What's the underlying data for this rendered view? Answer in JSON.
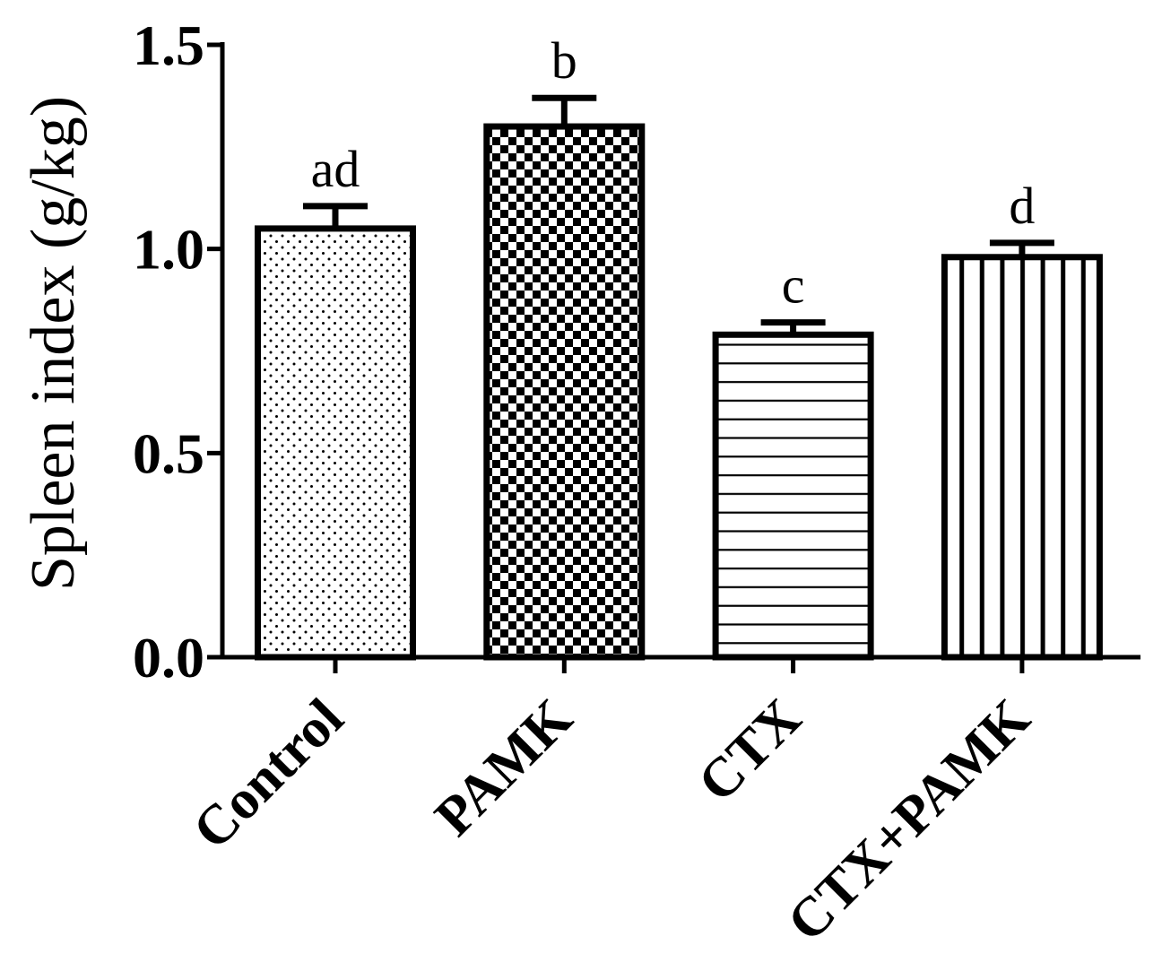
{
  "chart_data": {
    "type": "bar",
    "categories": [
      "Control",
      "PAMK",
      "CTX",
      "CTX+PAMK"
    ],
    "values": [
      1.05,
      1.3,
      0.79,
      0.98
    ],
    "error_bars": [
      0.055,
      0.07,
      0.03,
      0.035
    ],
    "annotations": [
      "ad",
      "b",
      "c",
      "d"
    ],
    "bar_patterns": [
      "dots",
      "checkerboard",
      "horizontal-lines",
      "vertical-lines"
    ],
    "ylabel": "Spleen index (g/kg)",
    "ylim": [
      0,
      1.5
    ],
    "yticks": [
      0.0,
      0.5,
      1.0,
      1.5
    ],
    "ytick_labels": [
      "0.0",
      "0.5",
      "1.0",
      "1.5"
    ],
    "grid": false,
    "legend": "none",
    "colors": {
      "ink": "#000000",
      "bar_background": "#ffffff"
    }
  }
}
